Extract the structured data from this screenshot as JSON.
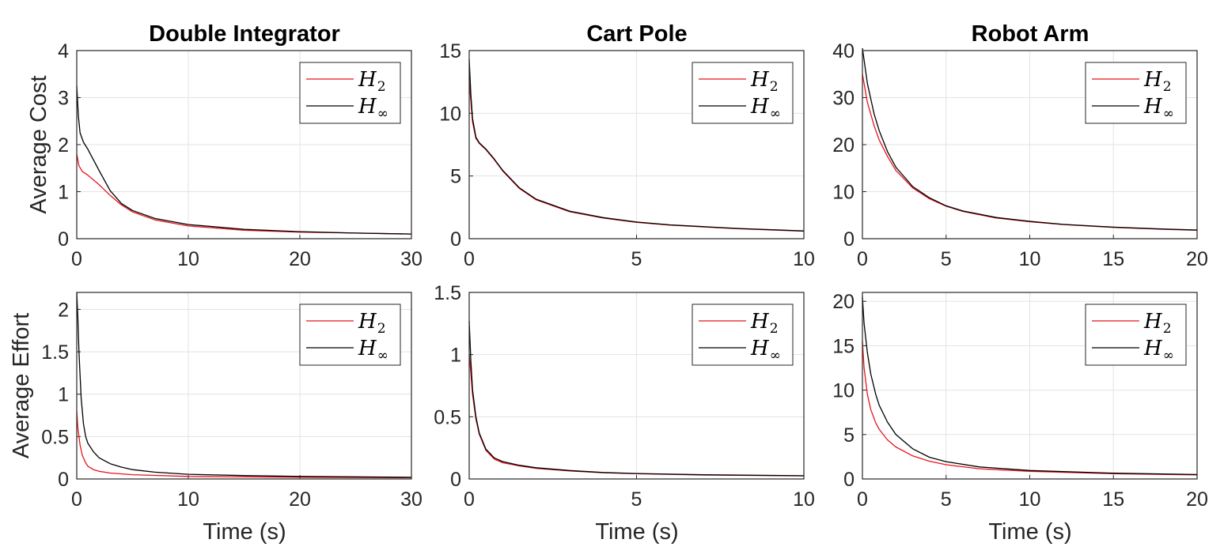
{
  "figure": {
    "col_titles": [
      "Double Integrator",
      "Cart Pole",
      "Robot Arm"
    ],
    "row_ylabels": [
      "Average Cost",
      "Average Effort"
    ],
    "xlabel": "Time (s)"
  },
  "legend": {
    "entries": [
      {
        "main": "H",
        "sub": "2",
        "color": "#e8141b"
      },
      {
        "main": "H",
        "sub": "∞",
        "color": "#000000"
      }
    ],
    "placement": "top-right"
  },
  "chart_data": [
    {
      "type": "line",
      "title": "Double Integrator",
      "xlabel": "",
      "ylabel": "Average Cost",
      "xlim": [
        0,
        30
      ],
      "ylim": [
        0,
        4
      ],
      "grid": true,
      "xticks": [
        "0",
        "10",
        "20",
        "30"
      ],
      "yticks": [
        "0",
        "1",
        "2",
        "3",
        "4"
      ],
      "series": [
        {
          "name": "H2",
          "color": "#e8141b",
          "x": [
            0,
            0.2,
            0.5,
            1,
            2,
            3,
            4,
            5,
            7,
            10,
            15,
            20,
            25,
            30
          ],
          "y": [
            1.8,
            1.55,
            1.43,
            1.35,
            1.15,
            0.92,
            0.72,
            0.57,
            0.4,
            0.27,
            0.18,
            0.14,
            0.12,
            0.1
          ]
        },
        {
          "name": "H∞",
          "color": "#000000",
          "x": [
            0,
            0.15,
            0.3,
            0.6,
            1,
            2,
            3,
            4,
            5,
            7,
            10,
            15,
            20,
            25,
            30
          ],
          "y": [
            3.25,
            2.6,
            2.25,
            2.05,
            1.9,
            1.45,
            1.02,
            0.75,
            0.6,
            0.43,
            0.3,
            0.2,
            0.15,
            0.12,
            0.1
          ]
        }
      ]
    },
    {
      "type": "line",
      "title": "Cart Pole",
      "xlabel": "",
      "ylabel": "",
      "xlim": [
        0,
        10
      ],
      "ylim": [
        0,
        15
      ],
      "grid": true,
      "xticks": [
        "0",
        "5",
        "10"
      ],
      "yticks": [
        "0",
        "5",
        "10",
        "15"
      ],
      "series": [
        {
          "name": "H2",
          "color": "#e8141b",
          "x": [
            0,
            0.05,
            0.1,
            0.2,
            0.3,
            0.5,
            0.75,
            1,
            1.5,
            2,
            3,
            4,
            5,
            6,
            8,
            10
          ],
          "y": [
            12.5,
            11.0,
            9.3,
            8.0,
            7.6,
            7.1,
            6.3,
            5.4,
            4.0,
            3.1,
            2.15,
            1.65,
            1.3,
            1.08,
            0.8,
            0.6
          ]
        },
        {
          "name": "H∞",
          "color": "#000000",
          "x": [
            0,
            0.05,
            0.1,
            0.2,
            0.3,
            0.5,
            0.75,
            1,
            1.5,
            2,
            3,
            4,
            5,
            6,
            8,
            10
          ],
          "y": [
            14.3,
            11.5,
            9.6,
            8.1,
            7.65,
            7.15,
            6.35,
            5.45,
            4.05,
            3.15,
            2.2,
            1.68,
            1.33,
            1.1,
            0.82,
            0.62
          ]
        }
      ]
    },
    {
      "type": "line",
      "title": "Robot Arm",
      "xlabel": "",
      "ylabel": "",
      "xlim": [
        0,
        20
      ],
      "ylim": [
        0,
        40
      ],
      "grid": true,
      "xticks": [
        "0",
        "5",
        "10",
        "15",
        "20"
      ],
      "yticks": [
        "0",
        "10",
        "20",
        "30",
        "40"
      ],
      "series": [
        {
          "name": "H2",
          "color": "#e8141b",
          "x": [
            0,
            0.3,
            0.7,
            1,
            1.5,
            2,
            3,
            4,
            5,
            6,
            8,
            10,
            12,
            15,
            18,
            20
          ],
          "y": [
            35,
            29,
            24,
            21,
            17.5,
            14.5,
            10.8,
            8.5,
            6.9,
            5.8,
            4.4,
            3.6,
            3.0,
            2.4,
            2.0,
            1.8
          ]
        },
        {
          "name": "H∞",
          "color": "#000000",
          "x": [
            0,
            0.3,
            0.7,
            1,
            1.5,
            2,
            3,
            4,
            5,
            6,
            8,
            10,
            12,
            15,
            18,
            20
          ],
          "y": [
            40.5,
            33,
            26.5,
            23,
            18.5,
            15.2,
            11.1,
            8.7,
            7.0,
            5.9,
            4.5,
            3.7,
            3.05,
            2.45,
            2.05,
            1.85
          ]
        }
      ]
    },
    {
      "type": "line",
      "title": "",
      "xlabel": "Time (s)",
      "ylabel": "Average Effort",
      "xlim": [
        0,
        30
      ],
      "ylim": [
        0,
        2.2
      ],
      "grid": true,
      "xticks": [
        "0",
        "10",
        "20",
        "30"
      ],
      "yticks": [
        "0",
        "0.5",
        "1",
        "1.5",
        "2"
      ],
      "series": [
        {
          "name": "H2",
          "color": "#e8141b",
          "x": [
            0,
            0.1,
            0.3,
            0.5,
            0.8,
            1,
            1.5,
            2,
            3,
            5,
            10,
            20,
            30
          ],
          "y": [
            0.8,
            0.6,
            0.4,
            0.28,
            0.19,
            0.15,
            0.11,
            0.09,
            0.07,
            0.05,
            0.03,
            0.02,
            0.015
          ]
        },
        {
          "name": "H∞",
          "color": "#000000",
          "x": [
            0,
            0.1,
            0.2,
            0.4,
            0.6,
            0.8,
            1,
            1.5,
            2,
            3,
            4,
            5,
            7,
            10,
            15,
            20,
            30
          ],
          "y": [
            2.2,
            1.9,
            1.5,
            0.95,
            0.65,
            0.5,
            0.42,
            0.32,
            0.25,
            0.18,
            0.14,
            0.11,
            0.08,
            0.055,
            0.04,
            0.03,
            0.02
          ]
        }
      ]
    },
    {
      "type": "line",
      "title": "",
      "xlabel": "Time (s)",
      "ylabel": "",
      "xlim": [
        0,
        10
      ],
      "ylim": [
        0,
        1.5
      ],
      "grid": true,
      "xticks": [
        "0",
        "5",
        "10"
      ],
      "yticks": [
        "0",
        "0.5",
        "1",
        "1.5"
      ],
      "series": [
        {
          "name": "H2",
          "color": "#e8141b",
          "x": [
            0,
            0.05,
            0.1,
            0.2,
            0.3,
            0.5,
            0.75,
            1,
            1.5,
            2,
            3,
            4,
            5,
            7,
            10
          ],
          "y": [
            1.0,
            0.85,
            0.68,
            0.48,
            0.36,
            0.23,
            0.16,
            0.13,
            0.105,
            0.085,
            0.065,
            0.05,
            0.042,
            0.032,
            0.025
          ]
        },
        {
          "name": "H∞",
          "color": "#000000",
          "x": [
            0,
            0.05,
            0.1,
            0.2,
            0.3,
            0.5,
            0.75,
            1,
            1.5,
            2,
            3,
            4,
            5,
            7,
            10
          ],
          "y": [
            1.27,
            0.95,
            0.72,
            0.5,
            0.37,
            0.24,
            0.17,
            0.14,
            0.11,
            0.09,
            0.068,
            0.052,
            0.044,
            0.034,
            0.026
          ]
        }
      ]
    },
    {
      "type": "line",
      "title": "",
      "xlabel": "Time (s)",
      "ylabel": "",
      "xlim": [
        0,
        20
      ],
      "ylim": [
        0,
        21
      ],
      "grid": true,
      "xticks": [
        "0",
        "5",
        "10",
        "15",
        "20"
      ],
      "yticks": [
        "0",
        "5",
        "10",
        "15",
        "20"
      ],
      "series": [
        {
          "name": "H2",
          "color": "#e8141b",
          "x": [
            0,
            0.1,
            0.3,
            0.5,
            0.8,
            1,
            1.5,
            2,
            3,
            4,
            5,
            7,
            10,
            15,
            20
          ],
          "y": [
            15.5,
            12.5,
            9.5,
            7.8,
            6.3,
            5.6,
            4.4,
            3.6,
            2.6,
            2.0,
            1.6,
            1.15,
            0.85,
            0.6,
            0.45
          ]
        },
        {
          "name": "H∞",
          "color": "#000000",
          "x": [
            0,
            0.1,
            0.3,
            0.5,
            0.8,
            1,
            1.5,
            2,
            3,
            4,
            5,
            7,
            10,
            15,
            20
          ],
          "y": [
            20.5,
            17.5,
            14.2,
            11.8,
            9.5,
            8.3,
            6.4,
            5.0,
            3.4,
            2.45,
            1.95,
            1.35,
            0.95,
            0.65,
            0.5
          ]
        }
      ]
    }
  ]
}
